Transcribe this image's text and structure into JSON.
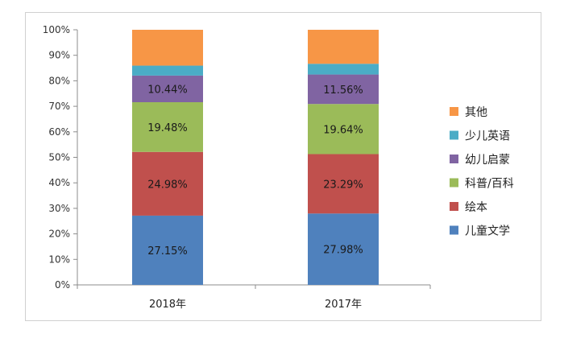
{
  "chart_data": {
    "type": "bar",
    "stacked": true,
    "categories": [
      "2018年",
      "2017年"
    ],
    "ylim": [
      0,
      100
    ],
    "yticks": [
      "0%",
      "10%",
      "20%",
      "30%",
      "40%",
      "50%",
      "60%",
      "70%",
      "80%",
      "90%",
      "100%"
    ],
    "grid": false,
    "legend_position": "right",
    "series": [
      {
        "name": "儿童文学",
        "values": [
          27.15,
          27.98
        ],
        "labels": [
          "27.15%",
          "27.98%"
        ],
        "color": "#4f81bd"
      },
      {
        "name": "绘本",
        "values": [
          24.98,
          23.29
        ],
        "labels": [
          "24.98%",
          "23.29%"
        ],
        "color": "#c0504d"
      },
      {
        "name": "科普/百科",
        "values": [
          19.48,
          19.64
        ],
        "labels": [
          "19.48%",
          "19.64%"
        ],
        "color": "#9bbb59"
      },
      {
        "name": "幼儿启蒙",
        "values": [
          10.44,
          11.56
        ],
        "labels": [
          "10.44%",
          "11.56%"
        ],
        "color": "#8064a2"
      },
      {
        "name": "少儿英语",
        "values": [
          3.9,
          4.2
        ],
        "labels": [
          "",
          ""
        ],
        "color": "#4bacc6"
      },
      {
        "name": "其他",
        "values": [
          14.05,
          13.33
        ],
        "labels": [
          "",
          ""
        ],
        "color": "#f79646"
      }
    ]
  }
}
